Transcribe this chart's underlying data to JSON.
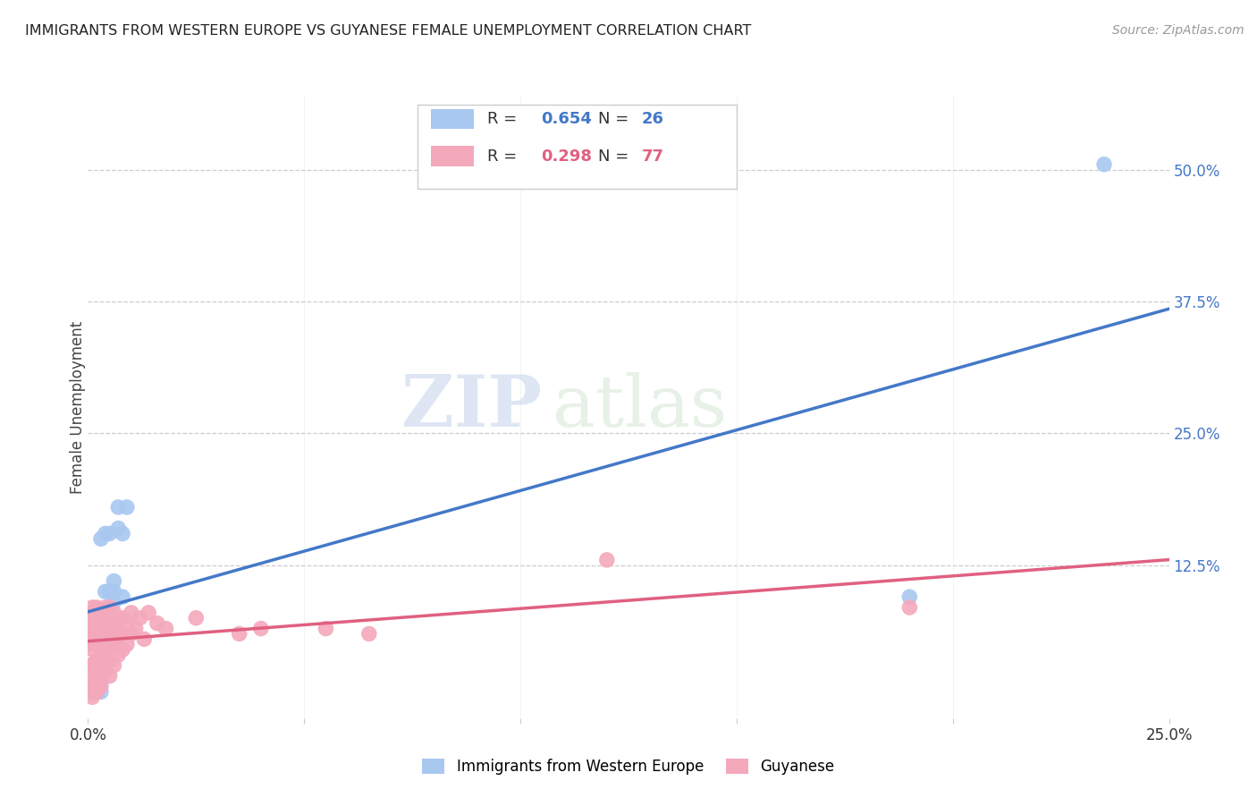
{
  "title": "IMMIGRANTS FROM WESTERN EUROPE VS GUYANESE FEMALE UNEMPLOYMENT CORRELATION CHART",
  "source": "Source: ZipAtlas.com",
  "ylabel": "Female Unemployment",
  "right_yticks": [
    "50.0%",
    "37.5%",
    "25.0%",
    "12.5%"
  ],
  "right_ytick_vals": [
    0.5,
    0.375,
    0.25,
    0.125
  ],
  "watermark_zip": "ZIP",
  "watermark_atlas": "atlas",
  "blue_R": "0.654",
  "blue_N": "26",
  "pink_R": "0.298",
  "pink_N": "77",
  "blue_color": "#A8C8F0",
  "pink_color": "#F4A8BC",
  "blue_line_color": "#4478C8",
  "pink_line_color": "#E06080",
  "legend_blue_label": "Immigrants from Western Europe",
  "legend_pink_label": "Guyanese",
  "xlim": [
    0.0,
    0.25
  ],
  "ylim": [
    -0.02,
    0.57
  ],
  "blue_points": [
    [
      0.001,
      0.005
    ],
    [
      0.001,
      0.01
    ],
    [
      0.002,
      0.005
    ],
    [
      0.002,
      0.01
    ],
    [
      0.002,
      0.02
    ],
    [
      0.003,
      0.005
    ],
    [
      0.003,
      0.015
    ],
    [
      0.003,
      0.08
    ],
    [
      0.003,
      0.15
    ],
    [
      0.004,
      0.055
    ],
    [
      0.004,
      0.08
    ],
    [
      0.004,
      0.1
    ],
    [
      0.004,
      0.155
    ],
    [
      0.005,
      0.1
    ],
    [
      0.005,
      0.1
    ],
    [
      0.005,
      0.155
    ],
    [
      0.006,
      0.11
    ],
    [
      0.006,
      0.1
    ],
    [
      0.006,
      0.09
    ],
    [
      0.007,
      0.16
    ],
    [
      0.007,
      0.18
    ],
    [
      0.008,
      0.095
    ],
    [
      0.008,
      0.155
    ],
    [
      0.009,
      0.18
    ],
    [
      0.19,
      0.095
    ],
    [
      0.235,
      0.505
    ]
  ],
  "pink_points": [
    [
      0.0,
      0.03
    ],
    [
      0.0,
      0.05
    ],
    [
      0.0,
      0.055
    ],
    [
      0.0,
      0.07
    ],
    [
      0.0,
      0.075
    ],
    [
      0.001,
      0.0
    ],
    [
      0.001,
      0.01
    ],
    [
      0.001,
      0.02
    ],
    [
      0.001,
      0.03
    ],
    [
      0.001,
      0.045
    ],
    [
      0.001,
      0.055
    ],
    [
      0.001,
      0.06
    ],
    [
      0.001,
      0.065
    ],
    [
      0.001,
      0.07
    ],
    [
      0.001,
      0.075
    ],
    [
      0.001,
      0.08
    ],
    [
      0.001,
      0.085
    ],
    [
      0.002,
      0.005
    ],
    [
      0.002,
      0.015
    ],
    [
      0.002,
      0.025
    ],
    [
      0.002,
      0.035
    ],
    [
      0.002,
      0.05
    ],
    [
      0.002,
      0.06
    ],
    [
      0.002,
      0.065
    ],
    [
      0.002,
      0.07
    ],
    [
      0.002,
      0.075
    ],
    [
      0.002,
      0.085
    ],
    [
      0.003,
      0.01
    ],
    [
      0.003,
      0.02
    ],
    [
      0.003,
      0.03
    ],
    [
      0.003,
      0.04
    ],
    [
      0.003,
      0.05
    ],
    [
      0.003,
      0.06
    ],
    [
      0.003,
      0.07
    ],
    [
      0.003,
      0.08
    ],
    [
      0.004,
      0.025
    ],
    [
      0.004,
      0.035
    ],
    [
      0.004,
      0.045
    ],
    [
      0.004,
      0.055
    ],
    [
      0.004,
      0.065
    ],
    [
      0.004,
      0.075
    ],
    [
      0.004,
      0.085
    ],
    [
      0.005,
      0.02
    ],
    [
      0.005,
      0.035
    ],
    [
      0.005,
      0.05
    ],
    [
      0.005,
      0.06
    ],
    [
      0.005,
      0.075
    ],
    [
      0.005,
      0.085
    ],
    [
      0.006,
      0.03
    ],
    [
      0.006,
      0.05
    ],
    [
      0.006,
      0.06
    ],
    [
      0.006,
      0.07
    ],
    [
      0.006,
      0.08
    ],
    [
      0.007,
      0.04
    ],
    [
      0.007,
      0.055
    ],
    [
      0.007,
      0.065
    ],
    [
      0.007,
      0.075
    ],
    [
      0.008,
      0.045
    ],
    [
      0.008,
      0.06
    ],
    [
      0.008,
      0.075
    ],
    [
      0.009,
      0.05
    ],
    [
      0.009,
      0.07
    ],
    [
      0.01,
      0.06
    ],
    [
      0.01,
      0.08
    ],
    [
      0.011,
      0.065
    ],
    [
      0.012,
      0.075
    ],
    [
      0.013,
      0.055
    ],
    [
      0.014,
      0.08
    ],
    [
      0.016,
      0.07
    ],
    [
      0.018,
      0.065
    ],
    [
      0.025,
      0.075
    ],
    [
      0.035,
      0.06
    ],
    [
      0.04,
      0.065
    ],
    [
      0.055,
      0.065
    ],
    [
      0.065,
      0.06
    ],
    [
      0.12,
      0.13
    ],
    [
      0.19,
      0.085
    ]
  ]
}
